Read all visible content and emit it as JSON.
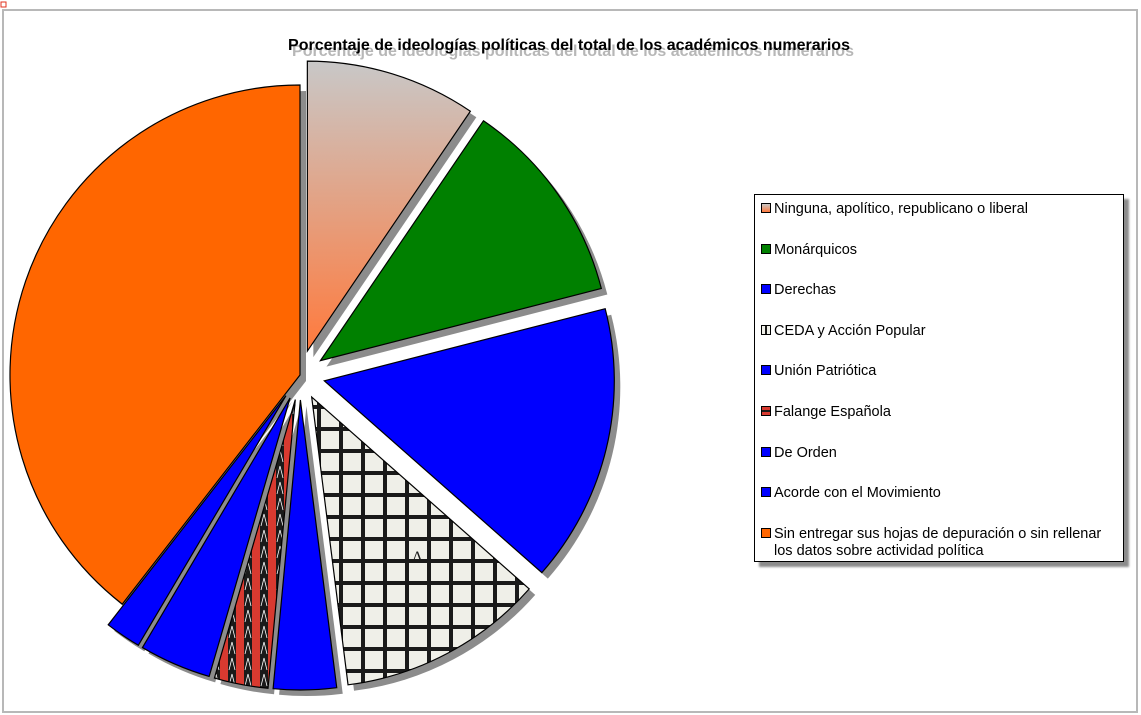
{
  "chart_data": {
    "type": "pie",
    "title": "Porcentaje de ideologías políticas del total de los académicos numerarios",
    "categories": [
      "Ninguna, apolítico, republicano o liberal",
      "Monárquicos",
      "Derechas",
      "CEDA y Acción Popular",
      "Unión Patriótica",
      "Falange Española",
      "De Orden",
      "Acorde con el Movimiento",
      "Sin entregar sus hojas de depuración o sin rellenar los datos sobre actividad política"
    ],
    "values": [
      9.5,
      11.5,
      15.5,
      11.5,
      3.5,
      3,
      4,
      2,
      39.5
    ],
    "unit": "%",
    "legend_position": "right",
    "exploded": true
  },
  "colors": {
    "ninguna_top": "#c8c8c8",
    "ninguna_bottom": "#ff7a3d",
    "monarquicos": "#008000",
    "derechas": "#0000ff",
    "ceda": "#b81d2a",
    "union_patriotica": "#0000ff",
    "falange": "#d83a30",
    "de_orden": "#0000ff",
    "acorde": "#0000ff",
    "sin_entregar": "#ff6600"
  }
}
